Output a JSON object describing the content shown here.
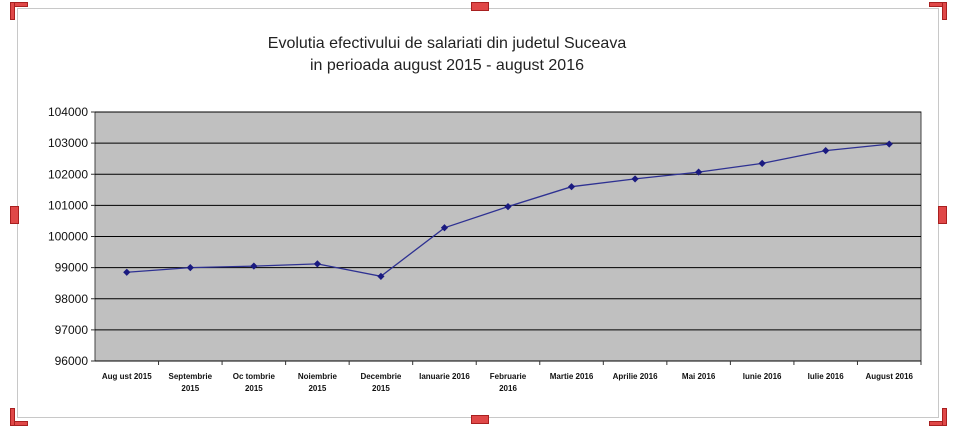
{
  "chart_data": {
    "type": "line",
    "title": "Evolutia efectivului de salariati din judetul Suceava",
    "subtitle": "in perioada august 2015 - august 2016",
    "categories": [
      [
        "Aug ust 2015"
      ],
      [
        "Septembrie",
        "2015"
      ],
      [
        "Oc tombrie",
        "2015"
      ],
      [
        "Noiembrie",
        "2015"
      ],
      [
        "Decembrie",
        "2015"
      ],
      [
        "Ianuarie 2016"
      ],
      [
        "Februarie",
        "2016"
      ],
      [
        "Martie 2016"
      ],
      [
        "Aprilie 2016"
      ],
      [
        "Mai 2016"
      ],
      [
        "Iunie 2016"
      ],
      [
        "Iulie 2016"
      ],
      [
        "August 2016"
      ]
    ],
    "series": [
      {
        "values": [
          98850,
          99000,
          99050,
          99120,
          98720,
          100280,
          100960,
          101600,
          101850,
          102070,
          102350,
          102760,
          102970
        ]
      }
    ],
    "yticks": [
      "96000",
      "97000",
      "98000",
      "99000",
      "100000",
      "101000",
      "102000",
      "103000",
      "104000"
    ],
    "ylim": [
      96000,
      104000
    ],
    "grid": true,
    "legend": "none",
    "colors": {
      "plot_background": "#c0c0c0",
      "line": "#2e3192",
      "marker": "#1a1a80",
      "gridline": "#000000"
    }
  }
}
